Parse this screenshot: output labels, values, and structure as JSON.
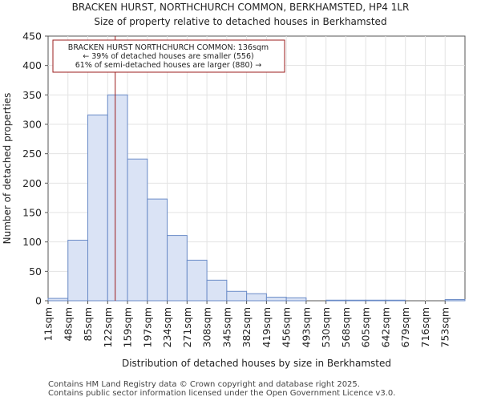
{
  "chart_data": {
    "type": "bar",
    "title": "BRACKEN HURST, NORTHCHURCH COMMON, BERKHAMSTED, HP4 1LR",
    "subtitle": "Size of property relative to detached houses in Berkhamsted",
    "xlabel": "Distribution of detached houses by size in Berkhamsted",
    "ylabel": "Number of detached properties",
    "ylim": [
      0,
      450
    ],
    "yticks": [
      "0",
      "50",
      "100",
      "150",
      "200",
      "250",
      "300",
      "350",
      "400",
      "450"
    ],
    "categories": [
      "11sqm",
      "48sqm",
      "85sqm",
      "122sqm",
      "159sqm",
      "197sqm",
      "234sqm",
      "271sqm",
      "308sqm",
      "345sqm",
      "382sqm",
      "419sqm",
      "456sqm",
      "493sqm",
      "530sqm",
      "568sqm",
      "605sqm",
      "642sqm",
      "679sqm",
      "716sqm",
      "753sqm"
    ],
    "values": [
      4,
      103,
      316,
      350,
      241,
      173,
      111,
      69,
      35,
      16,
      12,
      6,
      5,
      0,
      1,
      1,
      1,
      1,
      0,
      0,
      2
    ],
    "marker_value_bin": 3.38,
    "annotation": {
      "line1": "BRACKEN HURST NORTHCHURCH COMMON: 136sqm",
      "line2": "← 39% of detached houses are smaller (556)",
      "line3": "61% of semi-detached houses are larger (880) →"
    },
    "colors": {
      "bar_fill": "#dae3f5",
      "bar_stroke": "#6a8bc7",
      "marker": "#9b1c1c"
    }
  },
  "footer": {
    "line1": "Contains HM Land Registry data © Crown copyright and database right 2025.",
    "line2": "Contains public sector information licensed under the Open Government Licence v3.0."
  }
}
